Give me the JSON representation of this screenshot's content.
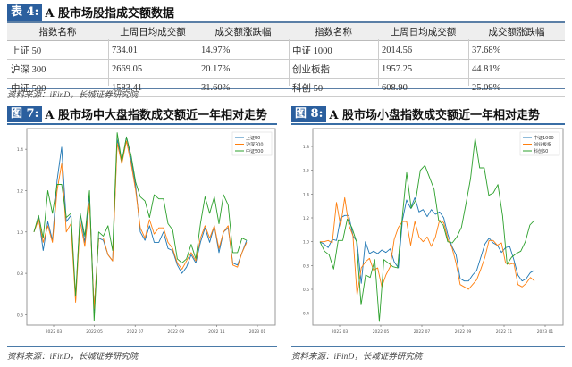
{
  "table4": {
    "tag": "表 4:",
    "title": "A 股市场股指成交额数据",
    "headers": [
      "指数名称",
      "上周日均成交额",
      "成交额涨跌幅",
      "指数名称",
      "上周日均成交额",
      "成交额涨跌幅"
    ],
    "rows": [
      [
        "上证 50",
        "734.01",
        "14.97%",
        "中证 1000",
        "2014.56",
        "37.68%"
      ],
      [
        "沪深 300",
        "2669.05",
        "20.17%",
        "创业板指",
        "1957.25",
        "44.81%"
      ],
      [
        "中证 500",
        "1583.41",
        "31.60%",
        "科创 50",
        "608.90",
        "25.09%"
      ]
    ],
    "source": "资料来源：iFinD，长城证券研究院"
  },
  "fig7": {
    "tag": "图 7:",
    "title": "A 股市场中大盘指数成交额近一年相对走势",
    "source": "资料来源：iFinD，长城证券研究院"
  },
  "fig8": {
    "tag": "图 8:",
    "title": "A 股市场小盘指数成交额近一年相对走势",
    "source": "资料来源：iFinD，长城证券研究院"
  },
  "colors": {
    "blue": "#1f77b4",
    "orange": "#ff7f0e",
    "green": "#2ca02c",
    "tag_bg": "#2b5f9e",
    "rule": "#5b7fa6"
  },
  "chart_data": [
    {
      "type": "line",
      "title": "A 股市场中大盘指数成交额近一年相对走势",
      "xlabel": "",
      "ylabel": "",
      "x_ticks": [
        "2022 03",
        "2022 05",
        "2022 07",
        "2022 09",
        "2022 11",
        "2023 01"
      ],
      "y_ticks": [
        "0.6",
        "0.8",
        "1.0",
        "1.2",
        "1.4"
      ],
      "ylim": [
        0.55,
        1.5
      ],
      "legend_position": "upper right",
      "grid": false,
      "series": [
        {
          "name": "上证50",
          "color": "#1f77b4",
          "values": [
            1.0,
            1.07,
            0.91,
            1.05,
            0.96,
            1.25,
            1.41,
            1.05,
            1.08,
            0.67,
            1.09,
            0.95,
            1.18,
            0.62,
            0.97,
            0.96,
            0.89,
            0.86,
            1.45,
            1.34,
            1.46,
            1.35,
            1.22,
            1.0,
            0.96,
            1.03,
            0.95,
            0.95,
            1.0,
            0.92,
            0.91,
            0.84,
            0.8,
            0.83,
            0.89,
            0.85,
            0.95,
            1.02,
            0.95,
            1.03,
            0.9,
            1.0,
            1.02,
            0.85,
            0.84,
            0.9,
            0.96
          ]
        },
        {
          "name": "沪深300",
          "color": "#ff7f0e",
          "values": [
            1.0,
            1.06,
            0.95,
            1.03,
            0.95,
            1.2,
            1.33,
            1.0,
            1.04,
            0.66,
            1.05,
            0.93,
            1.14,
            0.63,
            0.97,
            0.97,
            0.89,
            0.86,
            1.43,
            1.33,
            1.44,
            1.33,
            1.2,
            1.02,
            0.97,
            1.06,
            0.99,
            1.02,
            1.02,
            0.95,
            0.92,
            0.85,
            0.82,
            0.86,
            0.9,
            0.86,
            0.97,
            1.03,
            0.97,
            1.03,
            0.92,
            1.0,
            1.03,
            0.84,
            0.83,
            0.9,
            0.95
          ]
        },
        {
          "name": "中证500",
          "color": "#2ca02c",
          "values": [
            1.0,
            1.08,
            0.97,
            1.2,
            1.09,
            1.23,
            1.23,
            1.07,
            1.09,
            0.69,
            1.09,
            0.98,
            1.2,
            0.57,
            1.0,
            0.98,
            1.03,
            0.91,
            1.48,
            1.34,
            1.46,
            1.37,
            1.24,
            1.17,
            1.15,
            1.07,
            1.18,
            1.16,
            1.16,
            1.04,
            1.01,
            0.87,
            0.85,
            0.87,
            0.94,
            0.87,
            1.04,
            1.17,
            1.09,
            1.17,
            1.04,
            1.18,
            1.13,
            0.9,
            0.9,
            0.97,
            0.96
          ]
        }
      ]
    },
    {
      "type": "line",
      "title": "A 股市场小盘指数成交额近一年相对走势",
      "xlabel": "",
      "ylabel": "",
      "x_ticks": [
        "2022 03",
        "2022 05",
        "2022 07",
        "2022 09",
        "2022 11",
        "2023 01"
      ],
      "y_ticks": [
        "0.4",
        "0.6",
        "0.8",
        "1.0",
        "1.2",
        "1.4",
        "1.6",
        "1.8"
      ],
      "ylim": [
        0.3,
        1.95
      ],
      "legend_position": "upper right",
      "grid": false,
      "series": [
        {
          "name": "中证1000",
          "color": "#1f77b4",
          "values": [
            1.0,
            0.98,
            0.95,
            1.02,
            1.01,
            1.2,
            1.22,
            1.22,
            1.05,
            1.0,
            0.65,
            1.0,
            0.9,
            0.92,
            0.9,
            0.93,
            0.91,
            0.94,
            0.83,
            0.78,
            1.18,
            1.35,
            1.28,
            1.37,
            1.25,
            1.27,
            1.21,
            1.27,
            1.23,
            1.25,
            1.2,
            1.06,
            0.96,
            0.89,
            0.69,
            0.67,
            0.67,
            0.72,
            0.76,
            0.87,
            0.98,
            1.03,
            0.99,
            0.97,
            0.91,
            0.95,
            0.96,
            0.85,
            0.72,
            0.67,
            0.69,
            0.74,
            0.76
          ]
        },
        {
          "name": "创业板指",
          "color": "#ff7f0e",
          "values": [
            1.0,
            1.0,
            1.01,
            0.99,
            1.33,
            1.13,
            1.37,
            1.14,
            1.05,
            0.55,
            0.78,
            0.83,
            0.86,
            0.76,
            0.78,
            0.62,
            0.72,
            0.79,
            1.02,
            1.12,
            1.17,
            1.17,
            0.97,
            1.17,
            1.04,
            1.0,
            1.04,
            0.96,
            1.04,
            1.18,
            1.16,
            1.02,
            0.95,
            0.82,
            0.64,
            0.62,
            0.6,
            0.64,
            0.68,
            0.77,
            0.87,
            1.01,
            1.01,
            0.97,
            0.99,
            0.82,
            0.81,
            0.82,
            0.64,
            0.62,
            0.65,
            0.7,
            0.67
          ]
        },
        {
          "name": "科创50",
          "color": "#2ca02c",
          "values": [
            1.0,
            0.92,
            0.89,
            0.77,
            1.01,
            1.01,
            1.19,
            1.12,
            1.0,
            0.47,
            0.72,
            0.7,
            0.85,
            0.33,
            0.85,
            0.82,
            0.79,
            0.78,
            1.19,
            1.58,
            1.28,
            1.35,
            1.6,
            1.64,
            1.54,
            1.44,
            1.18,
            1.14,
            1.0,
            0.99,
            1.04,
            1.12,
            1.32,
            1.53,
            1.87,
            1.62,
            1.62,
            1.39,
            1.41,
            1.48,
            1.22,
            0.81,
            0.87,
            0.9,
            0.92,
            1.0,
            1.14,
            1.18
          ]
        }
      ]
    }
  ]
}
